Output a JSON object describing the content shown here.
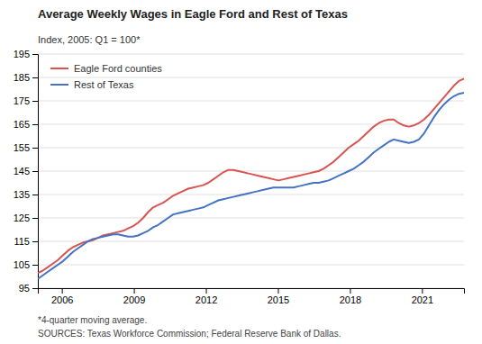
{
  "chart_data": {
    "type": "line",
    "title": "Average Weekly Wages in Eagle Ford and Rest of Texas",
    "subtitle": "Index, 2005:  Q1 = 100*",
    "annotations": [
      "*4-quarter moving average.",
      "SOURCES: Texas Workforce Commission; Federal Reserve Bank of Dallas."
    ],
    "x": [
      2005,
      2005.208824,
      2005.417647,
      2005.626471,
      2005.835294,
      2006.044118,
      2006.252941,
      2006.461765,
      2006.670588,
      2006.879412,
      2007.088235,
      2007.297059,
      2007.505882,
      2007.714706,
      2007.923529,
      2008.132353,
      2008.341176,
      2008.55,
      2008.758824,
      2008.967647,
      2009.176471,
      2009.385294,
      2009.594118,
      2009.802941,
      2010.011765,
      2010.220588,
      2010.429412,
      2010.638235,
      2010.847059,
      2011.055882,
      2011.264706,
      2011.473529,
      2011.682353,
      2011.891176,
      2012.1,
      2012.308824,
      2012.517647,
      2012.726471,
      2012.935294,
      2013.144118,
      2013.352941,
      2013.561765,
      2013.770588,
      2013.979412,
      2014.188235,
      2014.397059,
      2014.605882,
      2014.814706,
      2015.023529,
      2015.232353,
      2015.441176,
      2015.65,
      2015.858824,
      2016.067647,
      2016.276471,
      2016.485294,
      2016.694118,
      2016.902941,
      2017.111765,
      2017.320588,
      2017.529412,
      2017.738235,
      2017.947059,
      2018.155882,
      2018.364706,
      2018.573529,
      2018.782353,
      2018.991176,
      2019.2,
      2019.408824,
      2019.617647,
      2019.826471,
      2020.035294,
      2020.244118,
      2020.452941,
      2020.661765,
      2020.870588,
      2021.079412,
      2021.288235,
      2021.497059,
      2021.705882,
      2021.914706,
      2022.123529,
      2022.332353,
      2022.541176,
      2022.75
    ],
    "series": [
      {
        "name": "Eagle Ford counties",
        "color": "#d9534f",
        "values": [
          101.5,
          102.5,
          104.0,
          105.5,
          107.0,
          109.0,
          111.0,
          112.5,
          113.5,
          114.5,
          115.0,
          115.5,
          116.5,
          117.5,
          118.0,
          118.5,
          119.0,
          119.5,
          120.5,
          121.5,
          123.0,
          125.0,
          127.5,
          129.5,
          130.5,
          131.5,
          133.0,
          134.5,
          135.5,
          136.5,
          137.5,
          138.0,
          138.5,
          139.0,
          140.0,
          141.5,
          143.0,
          144.5,
          145.5,
          145.5,
          145.0,
          144.5,
          144.0,
          143.5,
          143.0,
          142.5,
          142.0,
          141.5,
          141.0,
          141.5,
          142.0,
          142.5,
          143.0,
          143.5,
          144.0,
          144.5,
          145.0,
          146.0,
          147.5,
          149.0,
          151.0,
          153.0,
          155.0,
          156.5,
          158.0,
          160.0,
          162.0,
          164.0,
          165.5,
          166.5,
          167.0,
          167.0,
          165.5,
          164.5,
          164.0,
          164.5,
          165.5,
          167.0,
          169.0,
          171.5,
          174.0,
          176.5,
          179.0,
          181.5,
          183.5,
          184.5
        ]
      },
      {
        "name": "Rest of Texas",
        "color": "#4472c4",
        "values": [
          99.0,
          100.5,
          102.0,
          103.5,
          105.0,
          106.5,
          108.5,
          110.5,
          112.0,
          113.5,
          115.0,
          116.0,
          116.5,
          117.0,
          117.5,
          118.0,
          118.0,
          117.5,
          117.0,
          117.0,
          117.5,
          118.5,
          119.5,
          121.0,
          122.0,
          123.5,
          125.0,
          126.5,
          127.0,
          127.5,
          128.0,
          128.5,
          129.0,
          129.5,
          130.5,
          131.5,
          132.5,
          133.0,
          133.5,
          134.0,
          134.5,
          135.0,
          135.5,
          136.0,
          136.5,
          137.0,
          137.5,
          138.0,
          138.0,
          138.0,
          138.0,
          138.0,
          138.5,
          139.0,
          139.5,
          140.0,
          140.0,
          140.5,
          141.0,
          142.0,
          143.0,
          144.0,
          145.0,
          146.0,
          147.5,
          149.0,
          151.0,
          153.0,
          154.5,
          156.0,
          157.5,
          158.5,
          158.0,
          157.5,
          157.0,
          157.5,
          158.5,
          161.0,
          164.5,
          168.0,
          171.0,
          173.5,
          175.5,
          177.0,
          178.0,
          178.5
        ]
      }
    ],
    "xlim": [
      2005,
      2022.75
    ],
    "xticks": [
      2006,
      2009,
      2012,
      2015,
      2018,
      2021
    ],
    "ylim": [
      95,
      195
    ],
    "yticks": [
      95,
      105,
      115,
      125,
      135,
      145,
      155,
      165,
      175,
      185,
      195
    ],
    "grid": true,
    "legend": "upper left"
  }
}
